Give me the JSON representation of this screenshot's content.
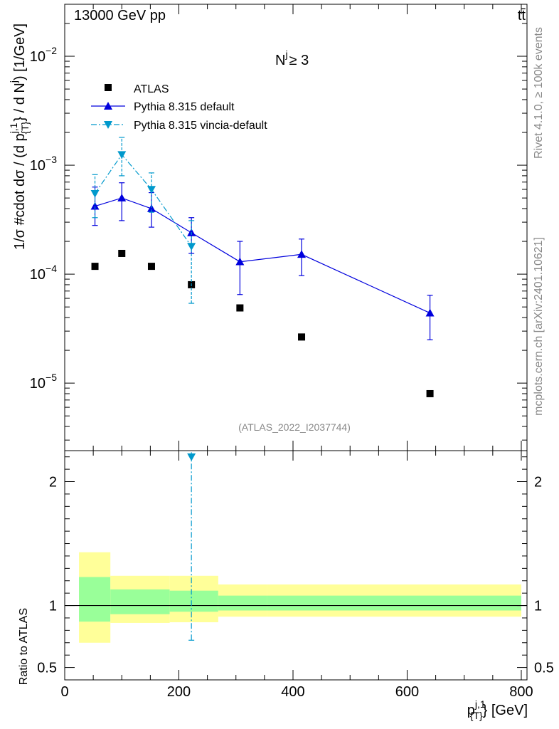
{
  "header": {
    "energy_label": "13000 GeV pp",
    "process_label": "tt̄"
  },
  "side_text": {
    "rivet": "Rivet 4.1.0, ≥ 100k events",
    "source": "mcplots.cern.ch [arXiv:2401.10621]"
  },
  "chart_data": [
    {
      "type": "scatter",
      "panel": "main",
      "title": "N",
      "title_sup": "j",
      "title_suffix": "≥ 3",
      "ylabel": "1/σ #cdot dσ / (d p",
      "ylabel_sup": "j,1",
      "ylabel_sub": "{T}",
      "ylabel_suffix": "} / d N",
      "ylabel_sup2": "j",
      "ylabel_end": ") [1/GeV]",
      "yscale": "log",
      "xlim": [
        0,
        810
      ],
      "ylim": [
        2.4e-06,
        0.03
      ],
      "yticks": [
        {
          "value": 1e-05,
          "base": "10",
          "exp": "−5"
        },
        {
          "value": 0.0001,
          "base": "10",
          "exp": "−4"
        },
        {
          "value": 0.001,
          "base": "10",
          "exp": "−3"
        },
        {
          "value": 0.01,
          "base": "10",
          "exp": "−2"
        }
      ],
      "watermark": "(ATLAS_2022_I2037744)",
      "legend_position": "top-left",
      "series": [
        {
          "name": "ATLAS",
          "marker": "square",
          "color": "#000000",
          "x": [
            53,
            100,
            152,
            222,
            307,
            415,
            640
          ],
          "y": [
            0.000118,
            0.000155,
            0.000118,
            8e-05,
            4.9e-05,
            2.65e-05,
            8e-06
          ]
        },
        {
          "name": "Pythia 8.315 default",
          "marker": "triangle-up",
          "line": "solid",
          "color": "#0000dd",
          "x": [
            53,
            100,
            152,
            222,
            307,
            415,
            640
          ],
          "y": [
            0.00042,
            0.0005,
            0.0004,
            0.00024,
            0.00013,
            0.000152,
            4.4e-05
          ],
          "err_low": [
            0.00028,
            0.00031,
            0.00027,
            0.000155,
            6.5e-05,
            9.7e-05,
            2.5e-05
          ],
          "err_high": [
            0.00063,
            0.00069,
            0.00056,
            0.00033,
            0.0002,
            0.00021,
            6.4e-05
          ]
        },
        {
          "name": "Pythia 8.315 vincia-default",
          "marker": "triangle-down",
          "line": "dashdot",
          "color": "#0099cc",
          "x": [
            53,
            100,
            152,
            222
          ],
          "y": [
            0.00055,
            0.00125,
            0.0006,
            0.00018
          ],
          "err_low": [
            0.00033,
            0.0008,
            0.00037,
            5.4e-05
          ],
          "err_high": [
            0.00082,
            0.0018,
            0.00085,
            0.00031
          ]
        }
      ]
    },
    {
      "type": "line",
      "panel": "ratio",
      "ylabel": "Ratio to ATLAS",
      "xlabel": "p",
      "xlabel_sup": "j,1",
      "xlabel_sub": "{T}",
      "xlabel_suffix": "} [GeV]",
      "xlim": [
        0,
        810
      ],
      "ylim": [
        0.4,
        2.25
      ],
      "xticks": [
        0,
        200,
        400,
        600,
        800
      ],
      "yticks": [
        0.5,
        1,
        2
      ],
      "reference": 1,
      "bands": {
        "bin_edges": [
          25,
          80,
          184,
          269,
          354,
          800
        ],
        "yellow_low": [
          0.7,
          0.86,
          0.865,
          0.91,
          0.91
        ],
        "yellow_high": [
          1.43,
          1.24,
          1.24,
          1.17,
          1.17
        ],
        "green_low": [
          0.87,
          0.93,
          0.95,
          0.96,
          0.96
        ],
        "green_high": [
          1.23,
          1.13,
          1.12,
          1.08,
          1.08
        ],
        "yellow_color": "#ffff99",
        "green_color": "#99ff99"
      },
      "series": [
        {
          "name": "Pythia 8.315 vincia-default",
          "marker": "triangle-down",
          "color": "#0099cc",
          "x": [
            222
          ],
          "y": [
            2.2
          ],
          "err_low": [
            0.72
          ],
          "err_high": [
            2.25
          ]
        }
      ]
    }
  ]
}
